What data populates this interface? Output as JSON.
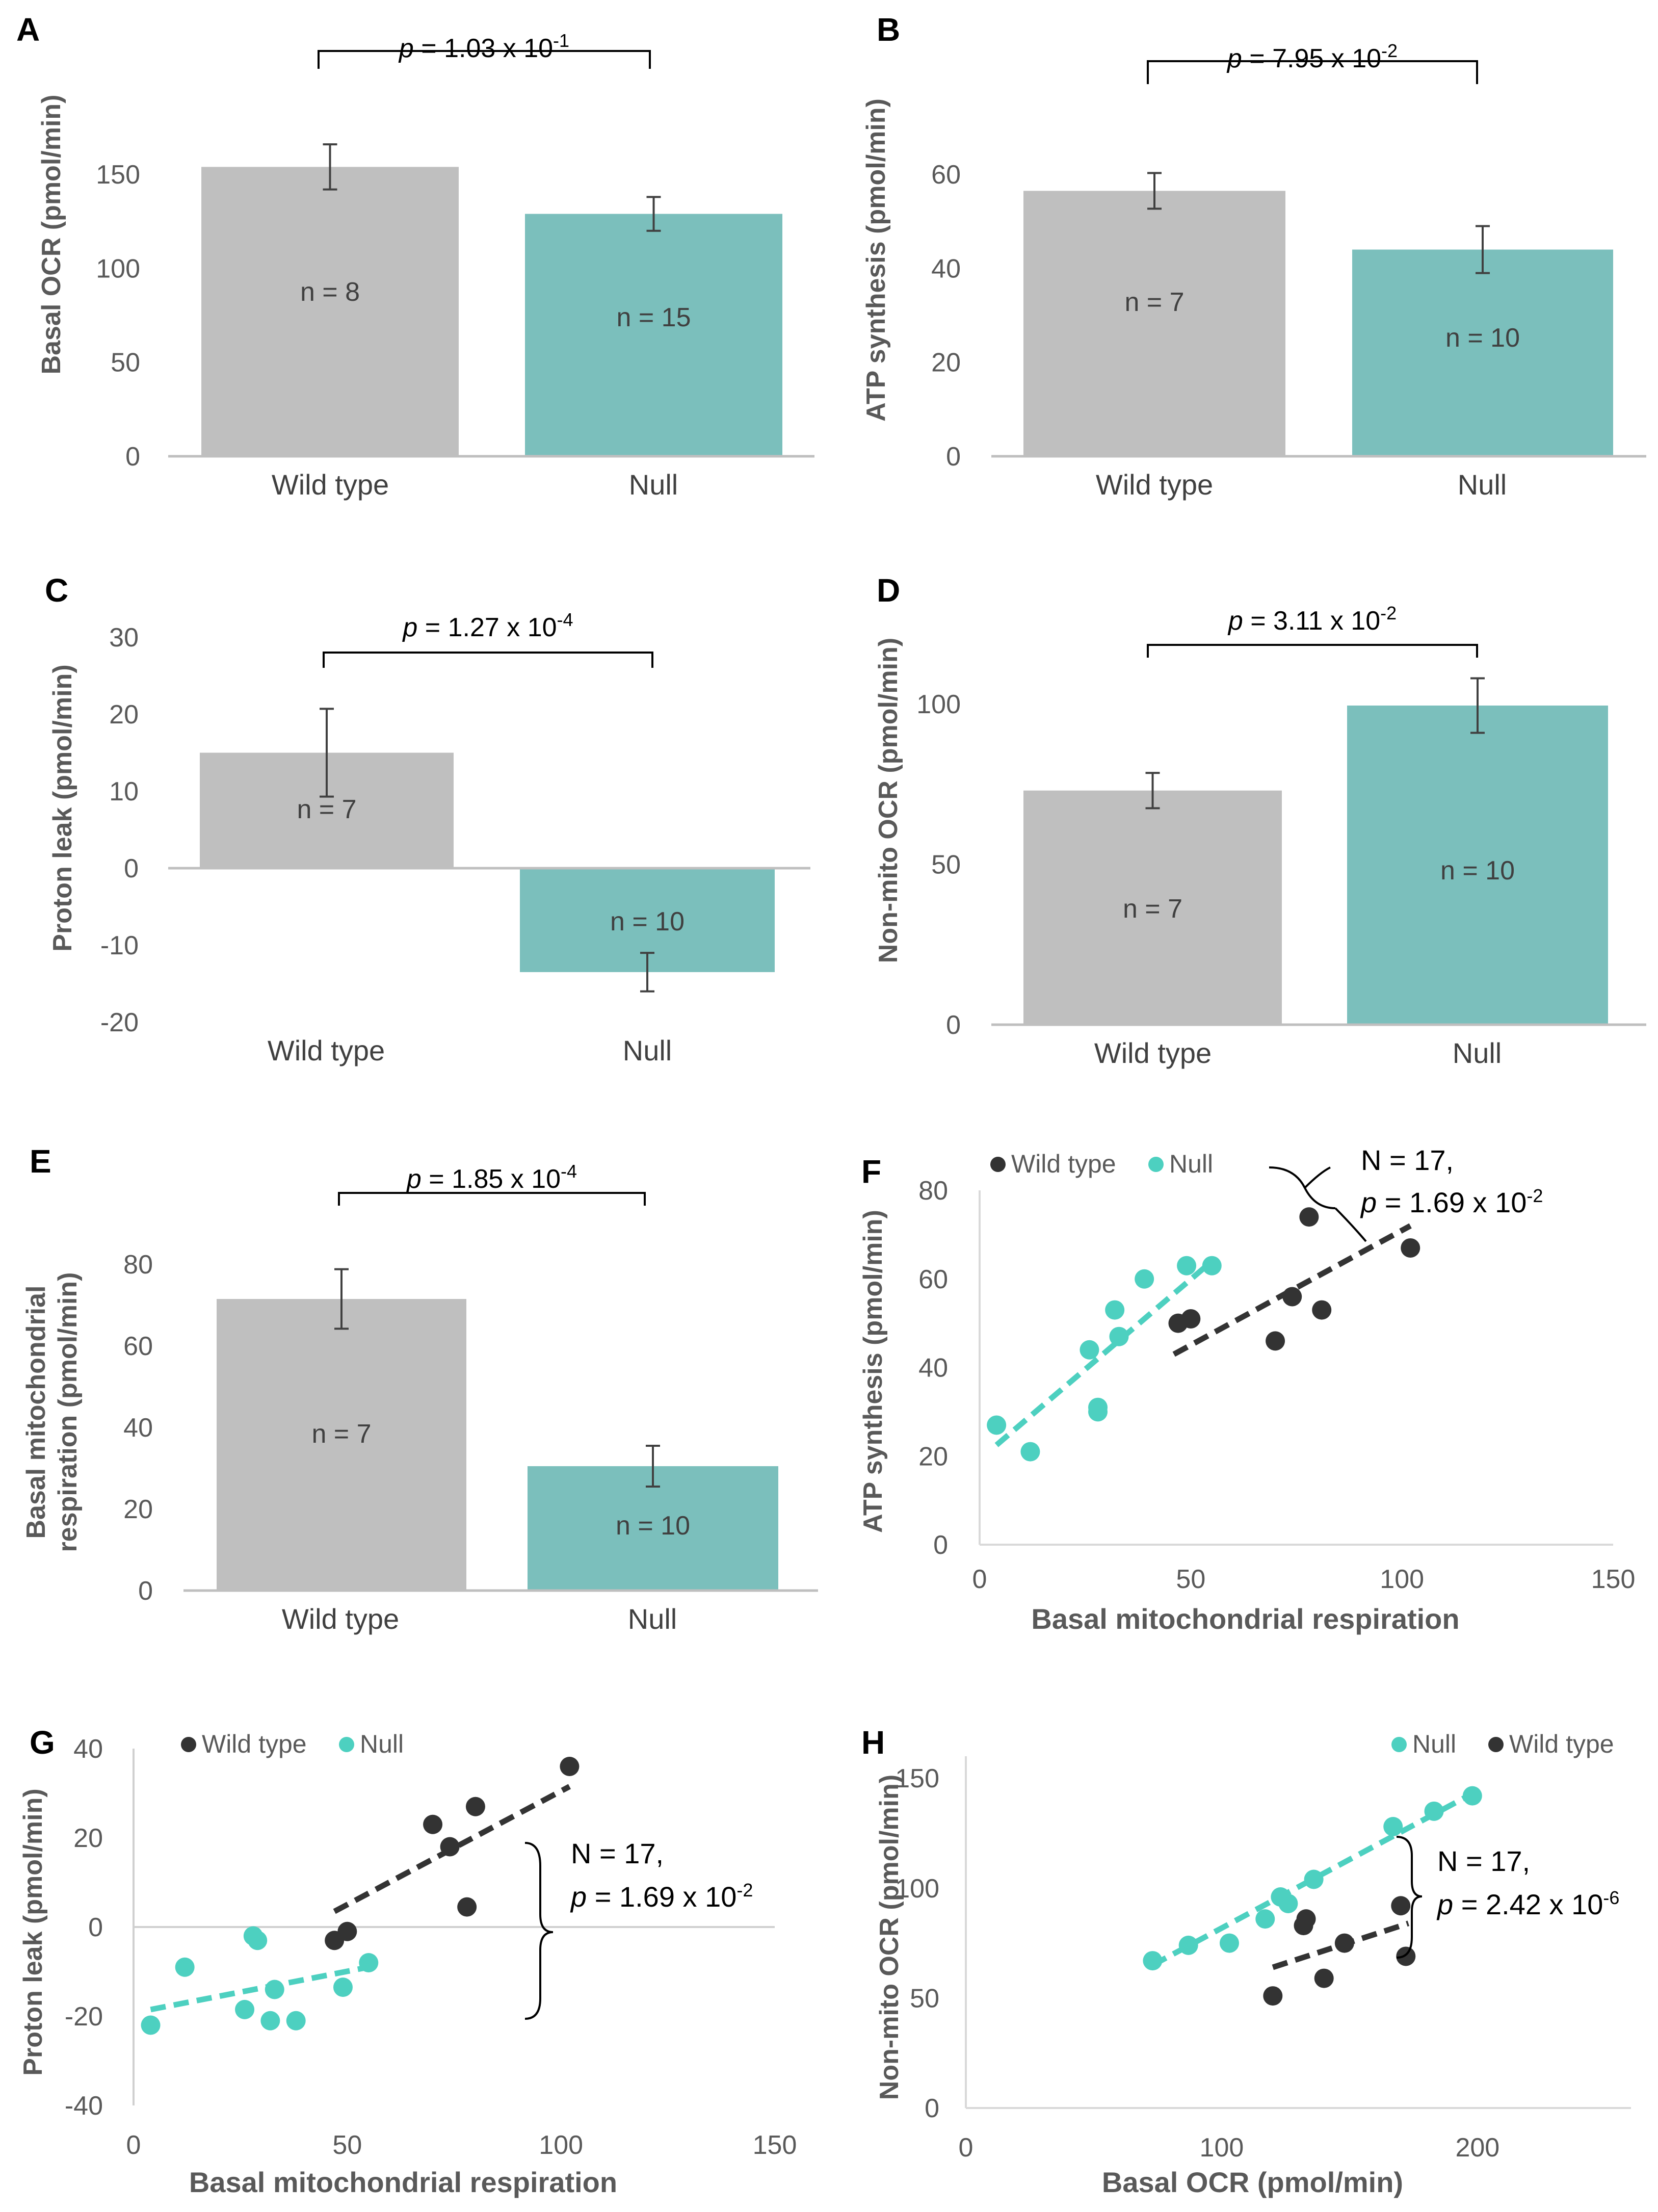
{
  "chart_data": [
    {
      "id": "A",
      "type": "bar",
      "ylabel": "Basal OCR (pmol/min)",
      "ylim": [
        0,
        175
      ],
      "yticks": [
        0,
        50,
        100,
        150
      ],
      "categories": [
        "Wild type",
        "Null"
      ],
      "values": [
        154,
        129
      ],
      "errors": [
        12,
        9
      ],
      "n_labels": [
        "n = 8",
        "n = 15"
      ],
      "p_value": {
        "prefix": "p",
        "text": " = 1.03 x 10",
        "exp": "-1"
      }
    },
    {
      "id": "B",
      "type": "bar",
      "ylabel": "ATP synthesis (pmol/min)",
      "ylim": [
        0,
        70
      ],
      "yticks": [
        0,
        20,
        40,
        60
      ],
      "categories": [
        "Wild type",
        "Null"
      ],
      "values": [
        56.5,
        44
      ],
      "errors": [
        3.8,
        5
      ],
      "n_labels": [
        "n = 7",
        "n = 10"
      ],
      "p_value": {
        "prefix": "p",
        "text": " = 7.95 x 10",
        "exp": "-2"
      }
    },
    {
      "id": "C",
      "type": "bar",
      "ylabel": "Proton leak (pmol/min)",
      "ylim": [
        -20,
        30
      ],
      "yticks": [
        -20,
        -10,
        0,
        10,
        20,
        30
      ],
      "categories": [
        "Wild type",
        "Null"
      ],
      "values": [
        15,
        -13.5
      ],
      "errors": [
        5.7,
        2.5
      ],
      "n_labels": [
        "n = 7",
        "n = 10"
      ],
      "p_value": {
        "prefix": "p",
        "text": " = 1.27 x 10",
        "exp": "-4"
      }
    },
    {
      "id": "D",
      "type": "bar",
      "ylabel": "Non-mito OCR (pmol/min)",
      "ylim": [
        0,
        120
      ],
      "yticks": [
        0,
        50,
        100
      ],
      "categories": [
        "Wild type",
        "Null"
      ],
      "values": [
        73,
        99.5
      ],
      "errors": [
        5.5,
        8.5
      ],
      "n_labels": [
        "n = 7",
        "n = 10"
      ],
      "p_value": {
        "prefix": "p",
        "text": " = 3.11 x 10",
        "exp": "-2"
      }
    },
    {
      "id": "E",
      "type": "bar",
      "ylabel": "Basal mitochondrial respiration (pmol/min)",
      "ylabel_lines": [
        "Basal mitochondrial",
        "respiration (pmol/min)"
      ],
      "ylim": [
        0,
        90
      ],
      "yticks": [
        0,
        20,
        40,
        60,
        80
      ],
      "categories": [
        "Wild type",
        "Null"
      ],
      "values": [
        71.5,
        30.5
      ],
      "errors": [
        7.3,
        5
      ],
      "n_labels": [
        "n = 7",
        "n = 10"
      ],
      "p_value": {
        "prefix": "p",
        "text": " = 1.85 x 10",
        "exp": "-4"
      }
    },
    {
      "id": "F",
      "type": "scatter",
      "xlabel": "Basal mitochondrial respiration",
      "ylabel": "ATP synthesis (pmol/min)",
      "xlim": [
        0,
        150
      ],
      "ylim": [
        0,
        80
      ],
      "xticks": [
        0,
        50,
        100,
        150
      ],
      "yticks": [
        0,
        20,
        40,
        60,
        80
      ],
      "legend": [
        "Wild type",
        "Null"
      ],
      "series": [
        {
          "name": "Wild type",
          "color": "#333333",
          "points": [
            [
              47,
              50
            ],
            [
              50,
              51
            ],
            [
              70,
              46
            ],
            [
              74,
              56
            ],
            [
              78,
              74
            ],
            [
              81,
              53
            ],
            [
              102,
              67
            ]
          ],
          "trend": [
            [
              46,
              43
            ],
            [
              102,
              72
            ]
          ]
        },
        {
          "name": "Null",
          "color": "#4dd0c0",
          "points": [
            [
              4,
              27
            ],
            [
              12,
              21
            ],
            [
              26,
              44
            ],
            [
              28,
              30
            ],
            [
              28,
              31
            ],
            [
              32,
              53
            ],
            [
              33,
              47
            ],
            [
              39,
              60
            ],
            [
              49,
              63
            ],
            [
              55,
              63
            ]
          ],
          "trend": [
            [
              4,
              22.5
            ],
            [
              55,
              64
            ]
          ]
        }
      ],
      "annotation": {
        "line1": "N = 17,",
        "prefix": "p",
        "text": " = 1.69 x 10",
        "exp": "-2"
      }
    },
    {
      "id": "G",
      "type": "scatter",
      "xlabel": "Basal mitochondrial respiration",
      "ylabel": "Proton leak (pmol/min)",
      "xlim": [
        0,
        150
      ],
      "ylim": [
        -40,
        40
      ],
      "xticks": [
        0,
        50,
        100,
        150
      ],
      "yticks": [
        -40,
        -20,
        0,
        20,
        40
      ],
      "legend": [
        "Wild type",
        "Null"
      ],
      "series": [
        {
          "name": "Wild type",
          "color": "#333333",
          "points": [
            [
              47,
              -3
            ],
            [
              50,
              -1
            ],
            [
              70,
              23
            ],
            [
              74,
              18
            ],
            [
              78,
              4.5
            ],
            [
              80,
              27
            ],
            [
              102,
              36
            ]
          ],
          "trend": [
            [
              47,
              3.5
            ],
            [
              102,
              31.5
            ]
          ]
        },
        {
          "name": "Null",
          "color": "#4dd0c0",
          "points": [
            [
              4,
              -22
            ],
            [
              12,
              -9
            ],
            [
              26,
              -18.5
            ],
            [
              28,
              -2
            ],
            [
              29,
              -3
            ],
            [
              32,
              -21
            ],
            [
              33,
              -14
            ],
            [
              38,
              -21
            ],
            [
              49,
              -13.5
            ],
            [
              55,
              -8
            ]
          ],
          "trend": [
            [
              4,
              -18.5
            ],
            [
              55,
              -9
            ]
          ]
        }
      ],
      "annotation": {
        "line1": "N = 17,",
        "prefix": "p",
        "text": " = 1.69 x 10",
        "exp": "-2"
      }
    },
    {
      "id": "H",
      "type": "scatter",
      "xlabel": "Basal OCR (pmol/min)",
      "ylabel": "Non-mito OCR (pmol/min)",
      "xlim": [
        0,
        260
      ],
      "ylim": [
        0,
        160
      ],
      "xticks": [
        0,
        100,
        200
      ],
      "yticks": [
        0,
        50,
        100,
        150
      ],
      "legend": [
        "Null",
        "Wild type"
      ],
      "series": [
        {
          "name": "Null",
          "color": "#4dd0c0",
          "points": [
            [
              73,
              67
            ],
            [
              87,
              74
            ],
            [
              103,
              75
            ],
            [
              117,
              86
            ],
            [
              123,
              96
            ],
            [
              126,
              93
            ],
            [
              136,
              104
            ],
            [
              167,
              128
            ],
            [
              183,
              135
            ],
            [
              198,
              142
            ]
          ],
          "trend": [
            [
              73,
              65
            ],
            [
              198,
              143
            ]
          ]
        },
        {
          "name": "Wild type",
          "color": "#333333",
          "points": [
            [
              120,
              51
            ],
            [
              132,
              83
            ],
            [
              133,
              86
            ],
            [
              140,
              59
            ],
            [
              148,
              75
            ],
            [
              170,
              92
            ],
            [
              172,
              69
            ]
          ],
          "trend": [
            [
              120,
              64
            ],
            [
              173,
              84
            ]
          ]
        }
      ],
      "annotation": {
        "line1": "N = 17,",
        "prefix": "p",
        "text": " = 2.42 x 10",
        "exp": "-6"
      }
    }
  ],
  "colors": {
    "wild_type_bar": "#bfbfbf",
    "null_bar": "#7bbfbc",
    "wild_type_point": "#333333",
    "null_point": "#4dd0c0"
  }
}
